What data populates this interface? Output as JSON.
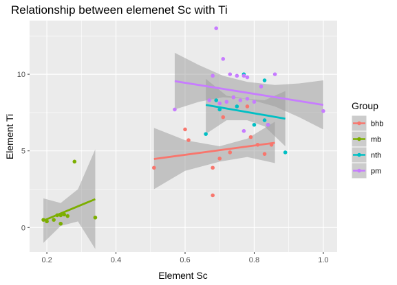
{
  "chart_data": {
    "type": "scatter",
    "title": "Relationship between elemenet Sc with Ti",
    "xlabel": "Element Sc",
    "ylabel": "Element Ti",
    "xlim": [
      0.15,
      1.04
    ],
    "ylim": [
      -1.6,
      13.5
    ],
    "x_ticks": [
      0.2,
      0.4,
      0.6,
      0.8,
      1.0
    ],
    "x_tick_labels": [
      "0.2",
      "0.4",
      "0.6",
      "0.8",
      "1.0"
    ],
    "y_ticks": [
      0,
      5,
      10
    ],
    "y_tick_labels": [
      "0",
      "5",
      "10"
    ],
    "grid": true,
    "legend": {
      "title": "Group",
      "position": "right"
    },
    "series": [
      {
        "name": "bhb",
        "color": "#F8766D",
        "points": [
          [
            0.51,
            3.9
          ],
          [
            0.6,
            6.4
          ],
          [
            0.61,
            5.7
          ],
          [
            0.68,
            2.1
          ],
          [
            0.68,
            3.9
          ],
          [
            0.7,
            4.5
          ],
          [
            0.71,
            7.2
          ],
          [
            0.73,
            4.9
          ],
          [
            0.79,
            5.9
          ],
          [
            0.81,
            5.4
          ],
          [
            0.83,
            4.8
          ],
          [
            0.85,
            5.4
          ],
          [
            0.78,
            7.9
          ],
          [
            0.74,
            8.5
          ]
        ],
        "fit": {
          "x": [
            0.51,
            0.86
          ],
          "y": [
            4.47,
            5.53
          ]
        },
        "ci": {
          "x": [
            0.51,
            0.6,
            0.7,
            0.78,
            0.86
          ],
          "lower": [
            2.5,
            3.7,
            4.3,
            4.6,
            4.2
          ],
          "upper": [
            6.5,
            5.7,
            5.3,
            5.8,
            6.9
          ]
        }
      },
      {
        "name": "mb",
        "color": "#7CAE00",
        "points": [
          [
            0.19,
            0.5
          ],
          [
            0.2,
            0.4
          ],
          [
            0.22,
            0.5
          ],
          [
            0.23,
            0.8
          ],
          [
            0.24,
            0.8
          ],
          [
            0.24,
            0.25
          ],
          [
            0.25,
            0.85
          ],
          [
            0.26,
            0.75
          ],
          [
            0.28,
            4.3
          ],
          [
            0.34,
            0.65
          ]
        ],
        "fit": {
          "x": [
            0.19,
            0.34
          ],
          "y": [
            0.45,
            1.85
          ]
        },
        "ci": {
          "x": [
            0.19,
            0.24,
            0.29,
            0.34
          ],
          "lower": [
            -1.0,
            0.1,
            0.4,
            -1.4
          ],
          "upper": [
            1.9,
            1.6,
            2.5,
            5.1
          ]
        }
      },
      {
        "name": "nth",
        "color": "#00BFC4",
        "points": [
          [
            0.66,
            6.1
          ],
          [
            0.69,
            8.3
          ],
          [
            0.7,
            7.7
          ],
          [
            0.75,
            7.9
          ],
          [
            0.77,
            10.0
          ],
          [
            0.8,
            6.7
          ],
          [
            0.83,
            7.0
          ],
          [
            0.84,
            6.7
          ],
          [
            0.83,
            9.6
          ],
          [
            0.89,
            4.9
          ]
        ],
        "fit": {
          "x": [
            0.66,
            0.89
          ],
          "y": [
            8.0,
            7.1
          ]
        },
        "ci": {
          "x": [
            0.66,
            0.72,
            0.78,
            0.83,
            0.89
          ],
          "lower": [
            6.1,
            7.0,
            7.0,
            6.6,
            5.3
          ],
          "upper": [
            9.7,
            8.6,
            8.4,
            8.3,
            8.9
          ]
        }
      },
      {
        "name": "pm",
        "color": "#C77CFF",
        "points": [
          [
            0.57,
            7.7
          ],
          [
            0.67,
            8.3
          ],
          [
            0.68,
            9.9
          ],
          [
            0.69,
            13.0
          ],
          [
            0.7,
            8.1
          ],
          [
            0.71,
            11.0
          ],
          [
            0.72,
            8.2
          ],
          [
            0.73,
            10.0
          ],
          [
            0.74,
            8.5
          ],
          [
            0.75,
            9.9
          ],
          [
            0.76,
            8.3
          ],
          [
            0.77,
            9.9
          ],
          [
            0.77,
            6.3
          ],
          [
            0.78,
            9.8
          ],
          [
            0.78,
            8.4
          ],
          [
            0.8,
            8.2
          ],
          [
            0.82,
            9.2
          ],
          [
            0.84,
            6.7
          ],
          [
            0.86,
            10.0
          ],
          [
            1.0,
            7.6
          ]
        ],
        "fit": {
          "x": [
            0.57,
            1.0
          ],
          "y": [
            9.55,
            8.0
          ]
        },
        "ci": {
          "x": [
            0.57,
            0.64,
            0.71,
            0.78,
            0.86,
            0.93,
            1.0
          ],
          "lower": [
            7.7,
            8.2,
            8.5,
            8.4,
            7.9,
            7.2,
            6.4
          ],
          "upper": [
            11.4,
            10.6,
            9.9,
            9.5,
            9.3,
            9.4,
            9.6
          ]
        }
      }
    ]
  }
}
